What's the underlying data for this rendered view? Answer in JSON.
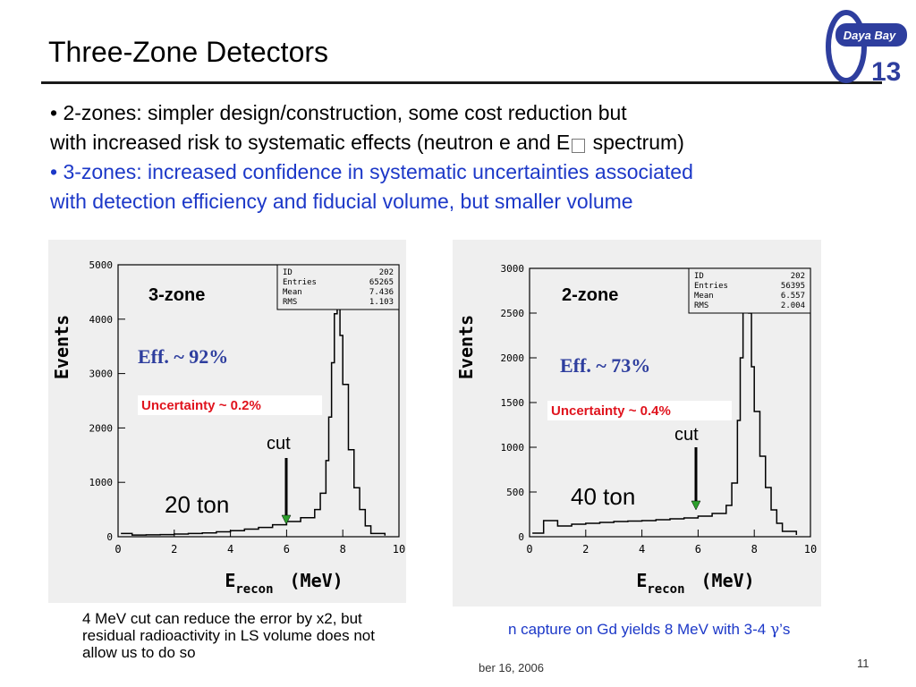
{
  "slide": {
    "title": "Three-Zone Detectors",
    "logo_text": "Daya Bay",
    "logo_number": "13",
    "page_number": "11",
    "footer_date": "ber  16, 2006"
  },
  "bullets": {
    "b1_line1": "• 2-zones: simpler design/construction, some cost reduction but",
    "b1_line2": "with increased risk to systematic effects (neutron e and E",
    "b1_line2_glyph": "",
    "b1_line2_end": " spectrum)",
    "b2_line1": "• 3-zones: increased confidence in systematic uncertainties associated",
    "b2_line2": "with detection efficiency and fiducial volume, but smaller volume"
  },
  "footnote": {
    "line1": "4 MeV cut can reduce the error by x2, but",
    "line2": "residual radioactivity in LS volume does not",
    "line3": "allow us to do so"
  },
  "ncapture_text_pre": "n capture on Gd yields 8 MeV with 3-4 ",
  "ncapture_gamma": "γ",
  "ncapture_text_post": "’s",
  "colors": {
    "blue": "#1c38c8",
    "red": "#e0141e",
    "green": "#2da02d",
    "panel": "#efefef"
  },
  "chart_data": [
    {
      "type": "line",
      "zone_label": "3-zone",
      "ylabel": "Events",
      "xlabel_main": "E",
      "xlabel_sub": "recon",
      "xlabel_unit": "(MeV)",
      "xlim": [
        0,
        10
      ],
      "ylim": [
        0,
        5000
      ],
      "xticks": [
        "0",
        "2",
        "4",
        "6",
        "8",
        "10"
      ],
      "yticks": [
        "0",
        "1000",
        "2000",
        "3000",
        "4000",
        "5000"
      ],
      "stats": {
        "ID": "202",
        "Entries": "65265",
        "Mean": "7.436",
        "RMS": "1.103"
      },
      "stats_labels": [
        "ID",
        "Entries",
        "Mean",
        "RMS"
      ],
      "eff": "Eff. ~ 92%",
      "uncertainty": "Uncertainty ~ 0.2%",
      "cut_label": "cut",
      "cut_x": 6,
      "mass_label": "20 ton",
      "x": [
        0.1,
        0.5,
        1.0,
        1.5,
        2.0,
        2.5,
        3.0,
        3.5,
        4.0,
        4.5,
        5.0,
        5.5,
        6.0,
        6.5,
        7.0,
        7.2,
        7.4,
        7.5,
        7.6,
        7.7,
        7.8,
        7.9,
        8.0,
        8.2,
        8.4,
        8.6,
        8.8,
        9.0,
        9.5
      ],
      "y": [
        60,
        30,
        35,
        40,
        50,
        60,
        70,
        90,
        110,
        140,
        170,
        220,
        280,
        350,
        500,
        800,
        1400,
        2200,
        3200,
        4100,
        4400,
        3700,
        2800,
        1600,
        900,
        500,
        200,
        60,
        20
      ]
    },
    {
      "type": "line",
      "zone_label": "2-zone",
      "ylabel": "Events",
      "xlabel_main": "E",
      "xlabel_sub": "recon",
      "xlabel_unit": "(MeV)",
      "xlim": [
        0,
        10
      ],
      "ylim": [
        0,
        3000
      ],
      "xticks": [
        "0",
        "2",
        "4",
        "6",
        "8",
        "10"
      ],
      "yticks": [
        "0",
        "500",
        "1000",
        "1500",
        "2000",
        "2500",
        "3000"
      ],
      "stats": {
        "ID": "202",
        "Entries": "56395",
        "Mean": "6.557",
        "RMS": "2.004"
      },
      "stats_labels": [
        "ID",
        "Entries",
        "Mean",
        "RMS"
      ],
      "eff": "Eff. ~ 73%",
      "uncertainty": "Uncertainty ~ 0.4%",
      "cut_label": "cut",
      "cut_x": 6,
      "mass_label": "40 ton",
      "x": [
        0.1,
        0.5,
        1.0,
        1.5,
        2.0,
        2.5,
        3.0,
        3.5,
        4.0,
        4.5,
        5.0,
        5.5,
        6.0,
        6.5,
        7.0,
        7.2,
        7.4,
        7.5,
        7.6,
        7.7,
        7.8,
        7.9,
        8.0,
        8.2,
        8.4,
        8.6,
        8.8,
        9.0,
        9.5
      ],
      "y": [
        40,
        180,
        120,
        140,
        150,
        160,
        170,
        175,
        180,
        190,
        200,
        210,
        230,
        260,
        350,
        600,
        1300,
        2000,
        2600,
        2800,
        2500,
        1900,
        1400,
        900,
        550,
        300,
        150,
        60,
        20
      ]
    }
  ]
}
